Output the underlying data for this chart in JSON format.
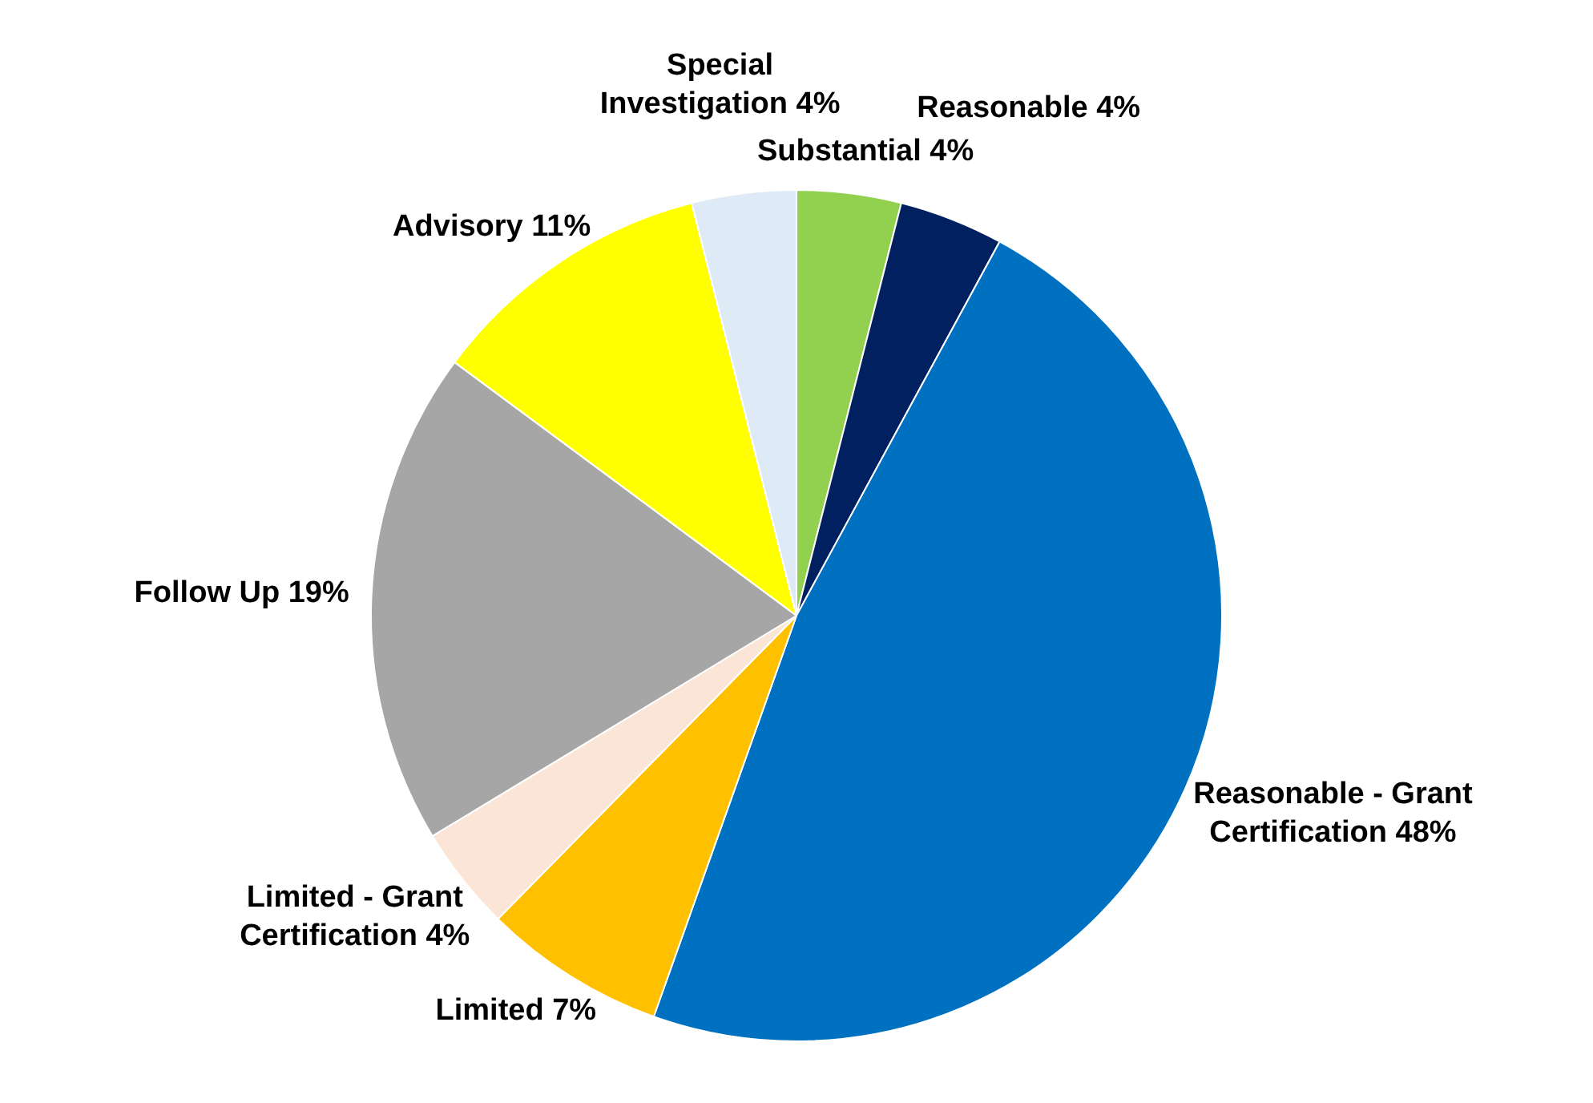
{
  "chart_data": {
    "type": "pie",
    "categories": [
      "Substantial",
      "Reasonable",
      "Reasonable - Grant Certification",
      "Limited",
      "Limited - Grant Certification",
      "Follow Up",
      "Advisory",
      "Special Investigation"
    ],
    "values": [
      4,
      4,
      48,
      7,
      4,
      19,
      11,
      4
    ],
    "value_labels": [
      "4%",
      "4%",
      "48%",
      "7%",
      "4%",
      "19%",
      "11%",
      "4%"
    ],
    "colors": [
      "#92d050",
      "#002060",
      "#0070c0",
      "#ffc000",
      "#fbe5d6",
      "#a6a6a6",
      "#ffff00",
      "#deebf7"
    ],
    "legend": false
  }
}
